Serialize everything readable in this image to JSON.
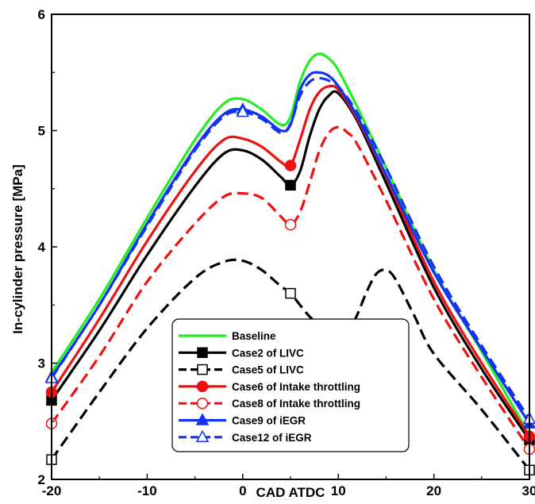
{
  "chart_data": {
    "type": "line",
    "xlabel": "CAD ATDC",
    "ylabel": "In-cylinder pressure [MPa]",
    "xlim": [
      -20,
      30
    ],
    "ylim": [
      2,
      6
    ],
    "xticks": [
      "-20",
      "-10",
      "0",
      "10",
      "20",
      "30"
    ],
    "yticks": [
      "2",
      "3",
      "4",
      "5",
      "6"
    ],
    "legend_position": "bottom-center",
    "grid": false,
    "series": [
      {
        "name": "Baseline",
        "color": "#22ee22",
        "dash": "solid",
        "marker": "none",
        "x": [
          -20,
          -15,
          -10,
          -5,
          -2,
          0,
          2,
          4,
          5,
          6,
          7,
          8,
          9,
          10,
          12,
          15,
          20,
          25,
          30
        ],
        "y": [
          2.92,
          3.55,
          4.25,
          4.92,
          5.23,
          5.27,
          5.18,
          5.05,
          5.12,
          5.42,
          5.6,
          5.66,
          5.62,
          5.52,
          5.2,
          4.68,
          3.8,
          3.1,
          2.38
        ]
      },
      {
        "name": "Case2 of LIVC",
        "color": "#000000",
        "dash": "solid",
        "marker": "square-filled",
        "marker_x": [
          -20,
          5,
          30
        ],
        "x": [
          -20,
          -15,
          -10,
          -5,
          -2,
          0,
          2,
          4,
          5,
          6,
          7,
          8,
          9,
          10,
          12,
          15,
          20,
          25,
          30
        ],
        "y": [
          2.68,
          3.28,
          3.93,
          4.52,
          4.8,
          4.83,
          4.75,
          4.6,
          4.53,
          4.65,
          4.95,
          5.18,
          5.3,
          5.32,
          5.08,
          4.55,
          3.65,
          2.95,
          2.34
        ]
      },
      {
        "name": "Case5 of LIVC",
        "color": "#000000",
        "dash": "dash",
        "marker": "square-open",
        "marker_x": [
          -20,
          5,
          30
        ],
        "x": [
          -20,
          -15,
          -10,
          -5,
          -2,
          0,
          2,
          4,
          5,
          7,
          9,
          10,
          11,
          12,
          13,
          14,
          15,
          16,
          18,
          20,
          25,
          30
        ],
        "y": [
          2.17,
          2.75,
          3.3,
          3.73,
          3.87,
          3.88,
          3.8,
          3.66,
          3.6,
          3.4,
          3.25,
          3.22,
          3.26,
          3.42,
          3.62,
          3.77,
          3.8,
          3.72,
          3.4,
          3.08,
          2.6,
          2.08
        ]
      },
      {
        "name": "Case6 of Intake throttling",
        "color": "#ee1111",
        "dash": "solid",
        "marker": "circle-filled",
        "marker_x": [
          -20,
          5,
          30
        ],
        "x": [
          -20,
          -15,
          -10,
          -5,
          -2,
          0,
          2,
          4,
          5,
          6,
          7,
          8,
          9,
          10,
          12,
          15,
          20,
          25,
          30
        ],
        "y": [
          2.75,
          3.38,
          4.05,
          4.65,
          4.92,
          4.93,
          4.86,
          4.73,
          4.7,
          4.92,
          5.18,
          5.33,
          5.38,
          5.35,
          5.1,
          4.6,
          3.7,
          3.0,
          2.37
        ]
      },
      {
        "name": "Case8 of Intake throttling",
        "color": "#ee1111",
        "dash": "dash",
        "marker": "circle-open",
        "marker_x": [
          -20,
          5,
          30
        ],
        "x": [
          -20,
          -15,
          -10,
          -5,
          -2,
          0,
          2,
          4,
          5,
          6,
          7,
          8,
          9,
          10,
          11,
          12,
          15,
          20,
          25,
          30
        ],
        "y": [
          2.48,
          3.06,
          3.7,
          4.2,
          4.43,
          4.46,
          4.42,
          4.26,
          4.19,
          4.3,
          4.55,
          4.82,
          4.98,
          5.03,
          4.98,
          4.88,
          4.4,
          3.55,
          2.88,
          2.26
        ]
      },
      {
        "name": "Case9 of iEGR",
        "color": "#1133ee",
        "dash": "solid",
        "marker": "triangle-filled",
        "marker_x": [
          -20,
          0,
          30
        ],
        "x": [
          -20,
          -15,
          -10,
          -5,
          -2,
          0,
          2,
          4,
          5,
          6,
          7,
          8,
          9,
          10,
          12,
          15,
          20,
          25,
          30
        ],
        "y": [
          2.88,
          3.5,
          4.2,
          4.85,
          5.14,
          5.18,
          5.12,
          5.0,
          5.05,
          5.35,
          5.48,
          5.5,
          5.47,
          5.38,
          5.12,
          4.62,
          3.78,
          3.12,
          2.48
        ]
      },
      {
        "name": "Case12 of iEGR",
        "color": "#1133ee",
        "dash": "dash",
        "marker": "triangle-open",
        "marker_x": [
          -20,
          0,
          30
        ],
        "x": [
          -20,
          -15,
          -10,
          -5,
          -2,
          0,
          2,
          4,
          5,
          6,
          7,
          8,
          9,
          10,
          12,
          15,
          20,
          25,
          30
        ],
        "y": [
          2.87,
          3.5,
          4.18,
          4.83,
          5.12,
          5.16,
          5.1,
          4.98,
          5.06,
          5.3,
          5.42,
          5.45,
          5.43,
          5.38,
          5.15,
          4.68,
          3.83,
          3.15,
          2.52
        ]
      }
    ]
  }
}
